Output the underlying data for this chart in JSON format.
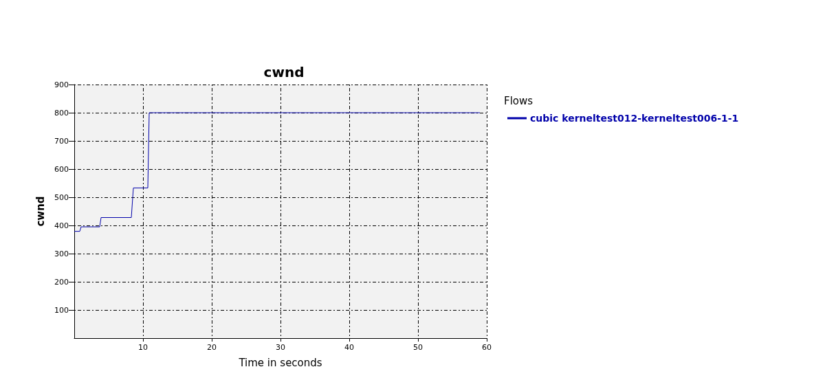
{
  "chart_data": {
    "type": "line",
    "title": "cwnd",
    "xlabel": "Time in seconds",
    "ylabel": "cwnd",
    "legend_title": "Flows",
    "legend": "right",
    "series": [
      {
        "name": "cubic kerneltest012-kerneltest006-1-1",
        "color": "#0000aa",
        "x": [
          0,
          0.8,
          1,
          3.7,
          3.9,
          8.3,
          8.6,
          10.7,
          10.9,
          59
        ],
        "values": [
          379,
          379,
          395,
          395,
          428,
          428,
          533,
          533,
          800,
          800
        ]
      }
    ],
    "xlim": [
      0,
      60
    ],
    "xticks": [
      10,
      20,
      30,
      40,
      50,
      60
    ],
    "ylim": [
      0,
      900
    ],
    "yticks": [
      100,
      200,
      300,
      400,
      500,
      600,
      700,
      800,
      900
    ],
    "grid": true,
    "marker": "none",
    "line_style": "solid"
  }
}
